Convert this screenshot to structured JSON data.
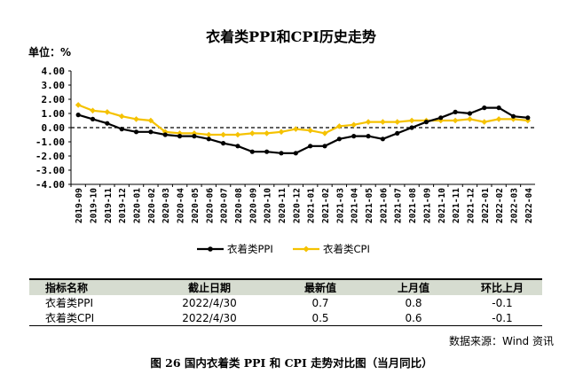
{
  "chart_data": {
    "type": "line",
    "title": "衣着类PPI和CPI历史走势",
    "unit_label": "单位：%",
    "ylim": [
      -4,
      4
    ],
    "yticks": [
      "4.00",
      "3.00",
      "2.00",
      "1.00",
      "0.00",
      "-1.00",
      "-2.00",
      "-3.00",
      "-4.00"
    ],
    "categories": [
      "2019-09",
      "2019-10",
      "2019-11",
      "2019-12",
      "2020-01",
      "2020-02",
      "2020-03",
      "2020-04",
      "2020-05",
      "2020-06",
      "2020-07",
      "2020-08",
      "2020-09",
      "2020-10",
      "2020-11",
      "2020-12",
      "2021-01",
      "2021-02",
      "2021-03",
      "2021-04",
      "2021-05",
      "2021-06",
      "2021-07",
      "2021-08",
      "2021-09",
      "2021-10",
      "2021-11",
      "2021-12",
      "2022-01",
      "2022-02",
      "2022-03",
      "2022-04"
    ],
    "series": [
      {
        "name": "衣着类PPI",
        "color": "#000000",
        "values": [
          0.9,
          0.6,
          0.3,
          -0.1,
          -0.3,
          -0.3,
          -0.5,
          -0.6,
          -0.6,
          -0.8,
          -1.1,
          -1.3,
          -1.7,
          -1.7,
          -1.8,
          -1.8,
          -1.3,
          -1.3,
          -0.8,
          -0.6,
          -0.6,
          -0.8,
          -0.4,
          0.0,
          0.4,
          0.7,
          1.1,
          1.0,
          1.4,
          1.4,
          0.8,
          0.7
        ]
      },
      {
        "name": "衣着类CPI",
        "color": "#f5c200",
        "values": [
          1.6,
          1.2,
          1.1,
          0.8,
          0.6,
          0.5,
          -0.3,
          -0.4,
          -0.4,
          -0.5,
          -0.5,
          -0.5,
          -0.4,
          -0.4,
          -0.3,
          -0.1,
          -0.2,
          -0.4,
          0.1,
          0.2,
          0.4,
          0.4,
          0.4,
          0.5,
          0.5,
          0.5,
          0.5,
          0.6,
          0.4,
          0.6,
          0.6,
          0.5
        ]
      }
    ],
    "grid": false,
    "zero_line": "dashed",
    "legend_position": "bottom"
  },
  "table": {
    "headers": [
      "指标名称",
      "截止日期",
      "最新值",
      "上月值",
      "环比上月"
    ],
    "rows": [
      [
        "衣着类PPI",
        "2022/4/30",
        "0.7",
        "0.8",
        "-0.1"
      ],
      [
        "衣着类CPI",
        "2022/4/30",
        "0.5",
        "0.6",
        "-0.1"
      ]
    ]
  },
  "source": "数据来源：Wind 资讯",
  "caption": "图 26  国内衣着类 PPI 和 CPI 走势对比图（当月同比）"
}
